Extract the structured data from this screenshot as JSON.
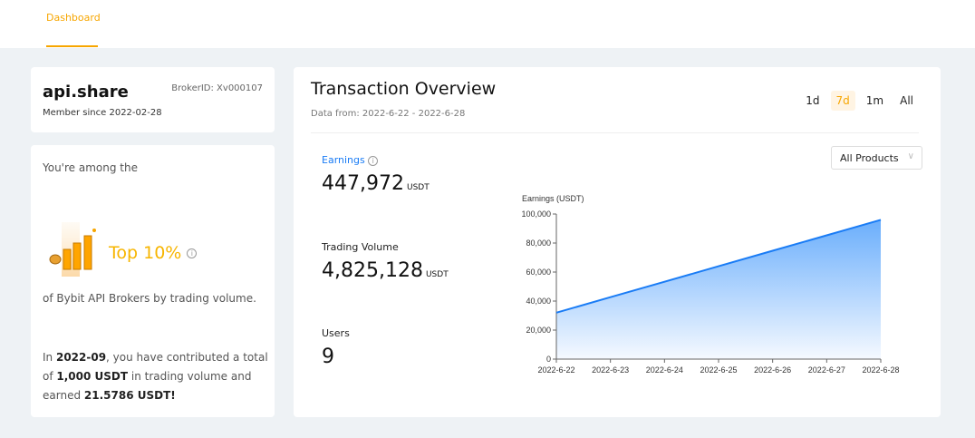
{
  "nav": {
    "tab": "Dashboard"
  },
  "profile": {
    "name": "api.share",
    "member_since": "Member since 2022-02-28",
    "broker_id": "BrokerID: Xv000107"
  },
  "rank": {
    "intro": "You're among the",
    "value": "Top 10%",
    "info": "i",
    "suffix": "of Bybit API Brokers by trading volume.",
    "contrib_1": "In ",
    "month": "2022-09",
    "contrib_2": ", you have contributed a total of ",
    "volume": "1,000 USDT",
    "contrib_3": " in trading volume and earned ",
    "earned": "21.5786 USDT!"
  },
  "overview": {
    "title": "Transaction Overview",
    "data_from": "Data from: 2022-6-22 - 2022-6-28",
    "periods": [
      "1d",
      "7d",
      "1m",
      "All"
    ],
    "active_period": "7d",
    "product_select": "All Products",
    "earnings_label": "Earnings",
    "earnings_value": "447,972",
    "unit": "USDT",
    "volume_label": "Trading Volume",
    "volume_value": "4,825,128",
    "users_label": "Users",
    "users_value": "9"
  },
  "colors": {
    "accent": "#f7a600",
    "line": "#1a7cf5"
  },
  "chart_data": {
    "type": "area",
    "ylabel": "Earnings (USDT)",
    "x": [
      "2022-6-22",
      "2022-6-23",
      "2022-6-24",
      "2022-6-25",
      "2022-6-26",
      "2022-6-27",
      "2022-6-28"
    ],
    "values": [
      32000,
      42700,
      53300,
      64000,
      74700,
      85300,
      96000
    ],
    "ylim": [
      0,
      100000
    ],
    "yticks": [
      "0",
      "20,000",
      "40,000",
      "60,000",
      "80,000",
      "100,000"
    ],
    "grid": false
  }
}
